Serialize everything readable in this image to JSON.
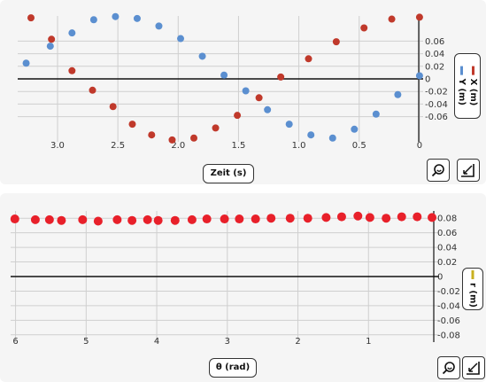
{
  "chart_data": [
    {
      "type": "scatter",
      "xlabel": "Zeit (s)",
      "ylabel": "",
      "xlim": [
        -0.03,
        3.33
      ],
      "ylim": [
        -0.1,
        0.1
      ],
      "x_ticks": [
        "0",
        "0.5",
        "1.0",
        "1.5",
        "2.0",
        "2.5",
        "3.0"
      ],
      "y_ticks": [
        "0.06",
        "0.04",
        "0.02",
        "0",
        "-0.02",
        "-0.04",
        "-0.06"
      ],
      "grid": true,
      "legend": "right",
      "series": [
        {
          "name": "X (m)",
          "color": "#c0392b",
          "x": [
            0.0,
            0.23,
            0.46,
            0.69,
            0.92,
            1.15,
            1.33,
            1.51,
            1.69,
            1.87,
            2.05,
            2.22,
            2.38,
            2.54,
            2.71,
            2.88,
            3.05,
            3.22
          ],
          "y": [
            0.098,
            0.095,
            0.081,
            0.059,
            0.032,
            0.003,
            -0.03,
            -0.058,
            -0.078,
            -0.094,
            -0.097,
            -0.089,
            -0.072,
            -0.044,
            -0.018,
            0.013,
            0.063,
            0.097
          ]
        },
        {
          "name": "Y (m)",
          "color": "#5b8fd0",
          "x": [
            0.0,
            0.18,
            0.36,
            0.54,
            0.72,
            0.9,
            1.08,
            1.26,
            1.44,
            1.62,
            1.8,
            1.98,
            2.16,
            2.34,
            2.52,
            2.7,
            2.88,
            3.06,
            3.26
          ],
          "y": [
            0.005,
            -0.025,
            -0.056,
            -0.08,
            -0.094,
            -0.089,
            -0.072,
            -0.049,
            -0.019,
            0.006,
            0.036,
            0.064,
            0.084,
            0.096,
            0.099,
            0.094,
            0.073,
            0.052,
            0.025
          ]
        }
      ]
    },
    {
      "type": "scatter",
      "xlabel": "θ (rad)",
      "ylabel": "",
      "xlim": [
        0,
        6.07
      ],
      "ylim": [
        -0.09,
        0.09
      ],
      "x_ticks": [
        "1",
        "2",
        "3",
        "4",
        "5",
        "6"
      ],
      "y_ticks": [
        "0.08",
        "0.06",
        "0.04",
        "0.02",
        "0",
        "-0.02",
        "-0.04",
        "-0.06",
        "-0.08"
      ],
      "grid": true,
      "legend": "right",
      "series": [
        {
          "name": "r (m)",
          "color": "#e8202a",
          "x": [
            0.1,
            0.31,
            0.53,
            0.75,
            0.98,
            1.15,
            1.38,
            1.6,
            1.86,
            2.11,
            2.38,
            2.6,
            2.83,
            3.04,
            3.29,
            3.5,
            3.74,
            3.98,
            4.13,
            4.35,
            4.56,
            4.83,
            5.05,
            5.35,
            5.52,
            5.72,
            6.01
          ],
          "y": [
            0.081,
            0.082,
            0.082,
            0.08,
            0.081,
            0.083,
            0.082,
            0.081,
            0.08,
            0.08,
            0.08,
            0.079,
            0.079,
            0.079,
            0.079,
            0.078,
            0.077,
            0.077,
            0.078,
            0.077,
            0.078,
            0.076,
            0.078,
            0.077,
            0.078,
            0.078,
            0.079
          ]
        }
      ]
    }
  ]
}
